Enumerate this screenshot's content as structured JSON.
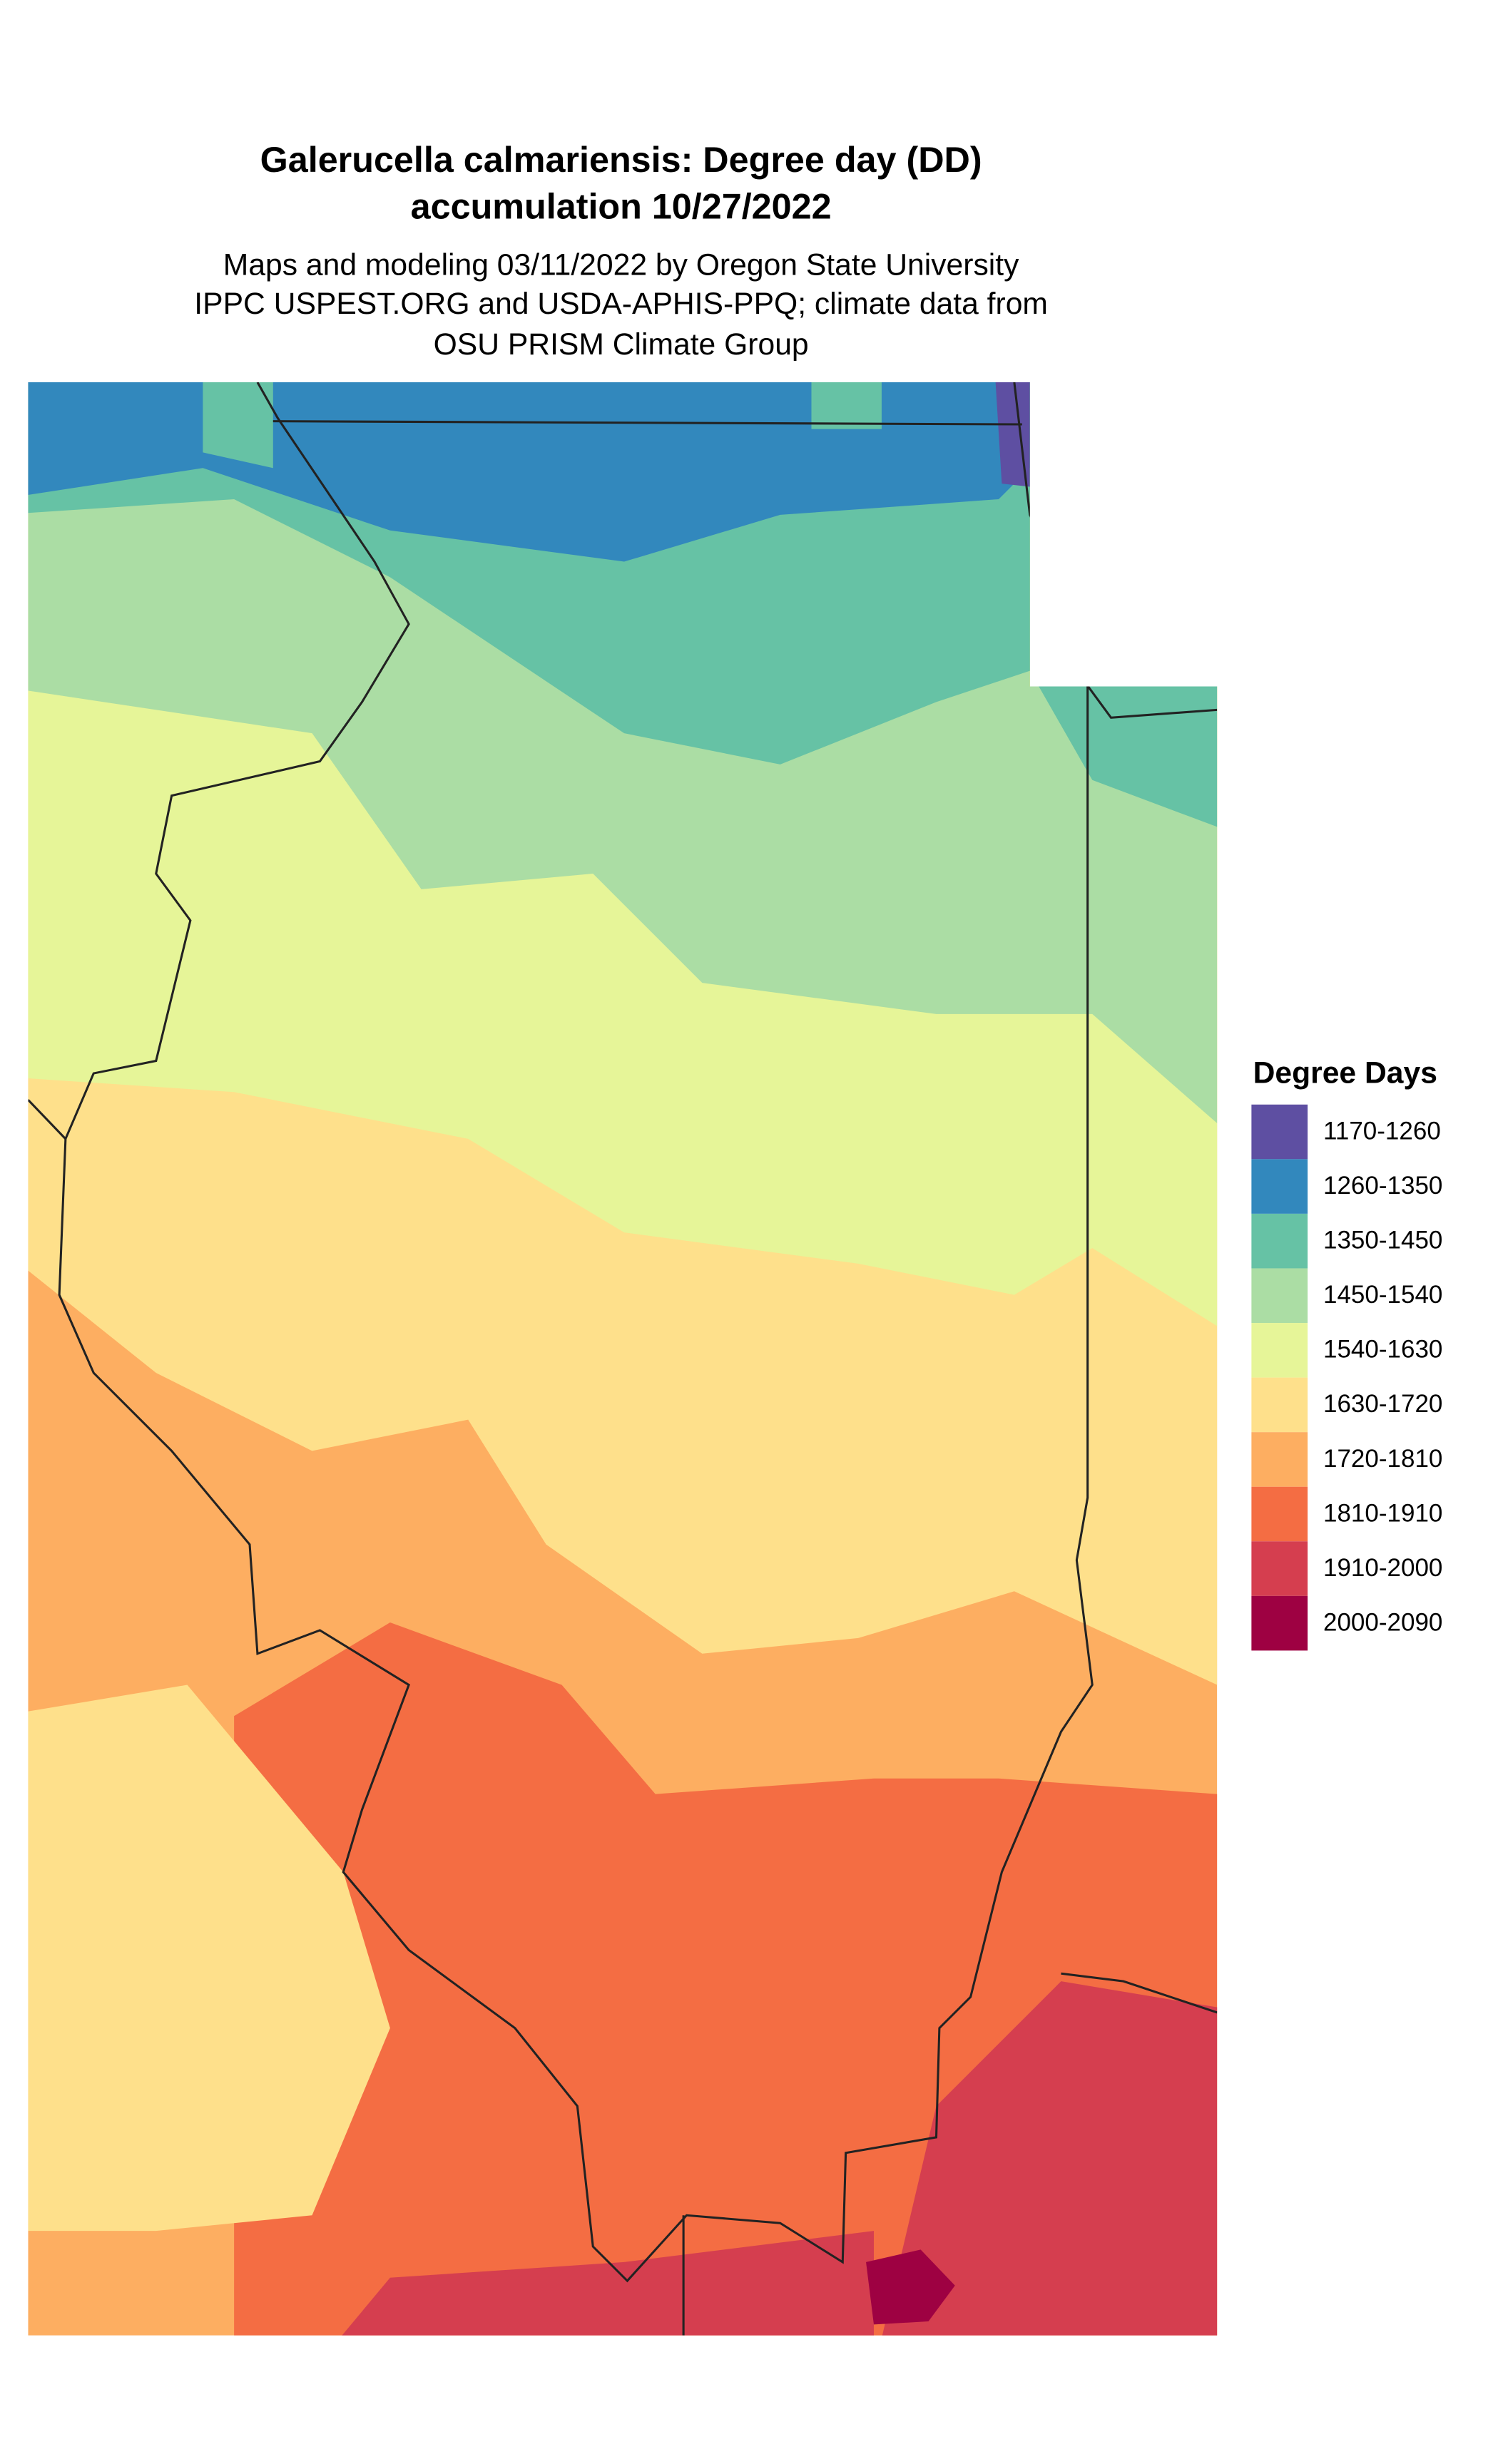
{
  "title": [
    "Galerucella calmariensis: Degree day (DD)",
    "accumulation 10/27/2022"
  ],
  "subtitle": [
    "Maps and modeling 03/11/2022 by Oregon State University",
    "IPPC USPEST.ORG and USDA-APHIS-PPQ; climate data from",
    "OSU PRISM Climate Group"
  ],
  "legend": {
    "title": "Degree Days",
    "items": [
      {
        "label": "1170-1260",
        "color": "#5e4fa2"
      },
      {
        "label": "1260-1350",
        "color": "#3288bd"
      },
      {
        "label": "1350-1450",
        "color": "#66c2a5"
      },
      {
        "label": "1450-1540",
        "color": "#abdda4"
      },
      {
        "label": "1540-1630",
        "color": "#e6f598"
      },
      {
        "label": "1630-1720",
        "color": "#fee08b"
      },
      {
        "label": "1720-1810",
        "color": "#fdae61"
      },
      {
        "label": "1810-1910",
        "color": "#f46d43"
      },
      {
        "label": "1910-2000",
        "color": "#d53e4f"
      },
      {
        "label": "2000-2090",
        "color": "#9e0142"
      }
    ]
  }
}
